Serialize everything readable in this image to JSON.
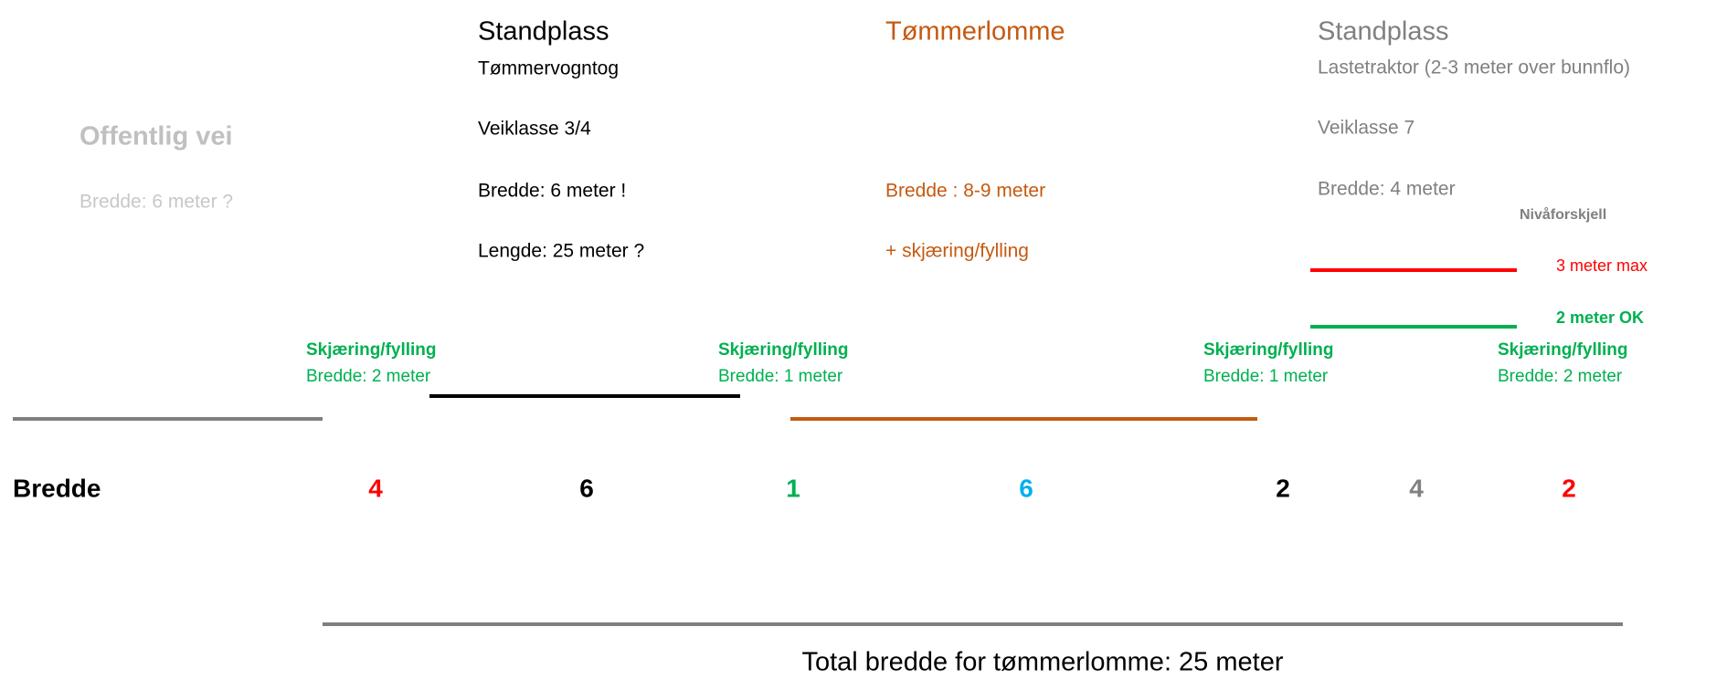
{
  "left": {
    "title": "Offentlig vei",
    "width": "Bredde: 6 meter ?"
  },
  "truck_stand": {
    "title": "Standplass",
    "subtitle": "Tømmervogntog",
    "road_class": "Veiklasse 3/4",
    "width": "Bredde: 6 meter !",
    "length": "Lengde: 25 meter ?"
  },
  "pocket": {
    "title": "Tømmerlomme",
    "width": "Bredde : 8-9 meter",
    "extra": "+ skjæring/fylling"
  },
  "tractor_stand": {
    "title": "Standplass",
    "subtitle": "Lastetraktor (2-3 meter over bunnflo)",
    "road_class": "Veiklasse 7",
    "width": "Bredde: 4 meter"
  },
  "level": {
    "title": "Nivåforskjell",
    "max": "3 meter max",
    "ok": "2 meter OK"
  },
  "cuts": [
    {
      "title": "Skjæring/fylling",
      "width": "Bredde: 2 meter"
    },
    {
      "title": "Skjæring/fylling",
      "width": "Bredde: 1 meter"
    },
    {
      "title": "Skjæring/fylling",
      "width": "Bredde: 1 meter"
    },
    {
      "title": "Skjæring/fylling",
      "width": "Bredde: 2 meter"
    }
  ],
  "widths": {
    "label": "Bredde",
    "values": [
      "4",
      "6",
      "1",
      "6",
      "2",
      "4",
      "2"
    ]
  },
  "total": "Total bredde for tømmerlomme: 25 meter"
}
